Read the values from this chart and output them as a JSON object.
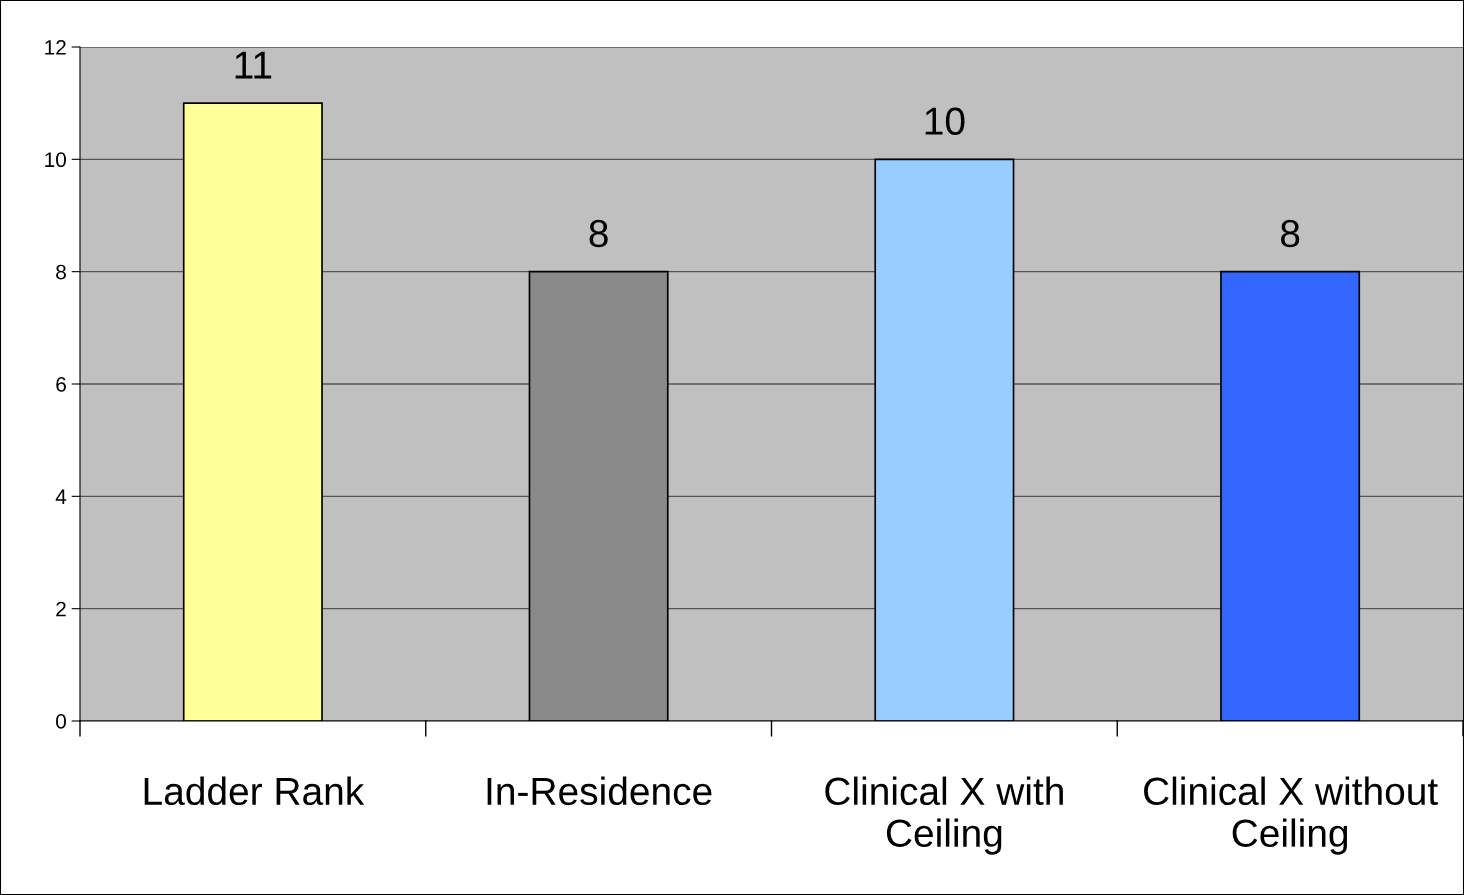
{
  "chart_data": {
    "type": "bar",
    "categories": [
      "Ladder Rank",
      "In-Residence",
      "Clinical X with\nCeiling",
      "Clinical X without\nCeiling"
    ],
    "values": [
      11,
      8,
      10,
      8
    ],
    "colors": [
      "#ffff99",
      "#8a8a8a",
      "#99ccff",
      "#3366ff"
    ],
    "ylim": [
      0,
      12
    ],
    "yticks": [
      0,
      2,
      4,
      6,
      8,
      10,
      12
    ],
    "grid": "y",
    "data_labels": true
  }
}
